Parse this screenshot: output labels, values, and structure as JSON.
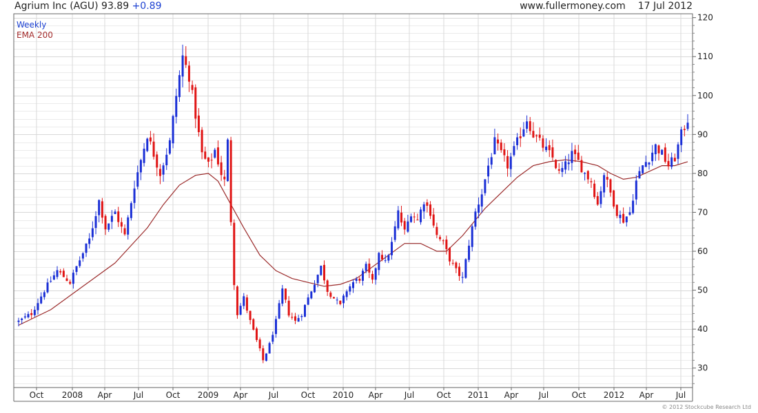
{
  "header": {
    "symbol": "Agrium Inc (AGU)",
    "price": "93.89",
    "change": "+0.89",
    "site": "www.fullermoney.com",
    "date": "17 Jul 2012"
  },
  "legend": {
    "weekly": "Weekly",
    "ema": "EMA 200"
  },
  "copyright": "© 2012 Stockcube Research Ltd",
  "colors": {
    "up": "#1a2fd6",
    "down": "#e01414",
    "ema": "#9b2a2a",
    "grid": "#d8d8d8"
  },
  "chart_data": {
    "type": "candlestick",
    "title": "Agrium Inc (AGU) 93.89 +0.89",
    "ylim": [
      25,
      121
    ],
    "y_ticks": [
      30,
      40,
      50,
      60,
      70,
      80,
      90,
      100,
      110,
      120
    ],
    "y_tick_labels": [
      "30",
      "40",
      "50",
      "60",
      "70",
      "80",
      "90",
      "100",
      "110",
      "120"
    ],
    "x_tick_labels": [
      "Oct",
      "2008",
      "Apr",
      "Jul",
      "Oct",
      "2009",
      "Apr",
      "Jul",
      "Oct",
      "2010",
      "Apr",
      "Jul",
      "Oct",
      "2011",
      "Apr",
      "Jul",
      "Oct",
      "2012",
      "Apr",
      "Jul"
    ],
    "series": [
      {
        "name": "Weekly",
        "close_path": [
          [
            0,
            42
          ],
          [
            4,
            44
          ],
          [
            8,
            50
          ],
          [
            12,
            55
          ],
          [
            16,
            52
          ],
          [
            18,
            56
          ],
          [
            22,
            63
          ],
          [
            25,
            73
          ],
          [
            27,
            66
          ],
          [
            30,
            70
          ],
          [
            33,
            64
          ],
          [
            36,
            77
          ],
          [
            40,
            90
          ],
          [
            42,
            85
          ],
          [
            44,
            80
          ],
          [
            47,
            88
          ],
          [
            49,
            100
          ],
          [
            51,
            110
          ],
          [
            53,
            105
          ],
          [
            55,
            95
          ],
          [
            57,
            85
          ],
          [
            59,
            82
          ],
          [
            61,
            86
          ],
          [
            63,
            80
          ],
          [
            64,
            78
          ],
          [
            65,
            88
          ],
          [
            66,
            68
          ],
          [
            67,
            52
          ],
          [
            68,
            44
          ],
          [
            70,
            48
          ],
          [
            72,
            42
          ],
          [
            74,
            37
          ],
          [
            76,
            32
          ],
          [
            78,
            36
          ],
          [
            80,
            42
          ],
          [
            82,
            50
          ],
          [
            84,
            44
          ],
          [
            86,
            42
          ],
          [
            88,
            44
          ],
          [
            90,
            48
          ],
          [
            92,
            52
          ],
          [
            94,
            56
          ],
          [
            96,
            50
          ],
          [
            98,
            48
          ],
          [
            100,
            46
          ],
          [
            102,
            50
          ],
          [
            104,
            52
          ],
          [
            106,
            53
          ],
          [
            108,
            56
          ],
          [
            110,
            52
          ],
          [
            112,
            60
          ],
          [
            114,
            57
          ],
          [
            116,
            62
          ],
          [
            118,
            70
          ],
          [
            120,
            65
          ],
          [
            122,
            70
          ],
          [
            124,
            68
          ],
          [
            126,
            73
          ],
          [
            128,
            70
          ],
          [
            130,
            64
          ],
          [
            132,
            62
          ],
          [
            134,
            58
          ],
          [
            136,
            55
          ],
          [
            138,
            53
          ],
          [
            140,
            62
          ],
          [
            142,
            70
          ],
          [
            144,
            75
          ],
          [
            146,
            82
          ],
          [
            148,
            88
          ],
          [
            150,
            85
          ],
          [
            152,
            82
          ],
          [
            154,
            86
          ],
          [
            156,
            90
          ],
          [
            158,
            94
          ],
          [
            160,
            90
          ],
          [
            162,
            88
          ],
          [
            164,
            86
          ],
          [
            166,
            84
          ],
          [
            168,
            80
          ],
          [
            170,
            82
          ],
          [
            172,
            85
          ],
          [
            174,
            83
          ],
          [
            176,
            80
          ],
          [
            178,
            78
          ],
          [
            180,
            72
          ],
          [
            182,
            80
          ],
          [
            184,
            75
          ],
          [
            186,
            70
          ],
          [
            188,
            68
          ],
          [
            190,
            70
          ],
          [
            192,
            78
          ],
          [
            194,
            82
          ],
          [
            196,
            84
          ],
          [
            198,
            87
          ],
          [
            200,
            85
          ],
          [
            202,
            82
          ],
          [
            204,
            84
          ],
          [
            206,
            90
          ],
          [
            208,
            93.89
          ]
        ]
      },
      {
        "name": "EMA 200",
        "points": [
          [
            0,
            41
          ],
          [
            10,
            45
          ],
          [
            20,
            51
          ],
          [
            30,
            57
          ],
          [
            40,
            66
          ],
          [
            45,
            72
          ],
          [
            50,
            77
          ],
          [
            55,
            79.5
          ],
          [
            59,
            80
          ],
          [
            62,
            78
          ],
          [
            66,
            72
          ],
          [
            70,
            66
          ],
          [
            75,
            59
          ],
          [
            80,
            55
          ],
          [
            85,
            53
          ],
          [
            90,
            52
          ],
          [
            95,
            51
          ],
          [
            100,
            51.5
          ],
          [
            105,
            53
          ],
          [
            110,
            56
          ],
          [
            115,
            59
          ],
          [
            120,
            62
          ],
          [
            125,
            62
          ],
          [
            130,
            60
          ],
          [
            133,
            60
          ],
          [
            138,
            64
          ],
          [
            145,
            71
          ],
          [
            150,
            75
          ],
          [
            155,
            79
          ],
          [
            160,
            82
          ],
          [
            165,
            83
          ],
          [
            170,
            83.5
          ],
          [
            175,
            83
          ],
          [
            180,
            82
          ],
          [
            184,
            80
          ],
          [
            188,
            78.5
          ],
          [
            192,
            79
          ],
          [
            196,
            80.5
          ],
          [
            200,
            82
          ],
          [
            204,
            82
          ],
          [
            208,
            83
          ]
        ]
      }
    ]
  }
}
